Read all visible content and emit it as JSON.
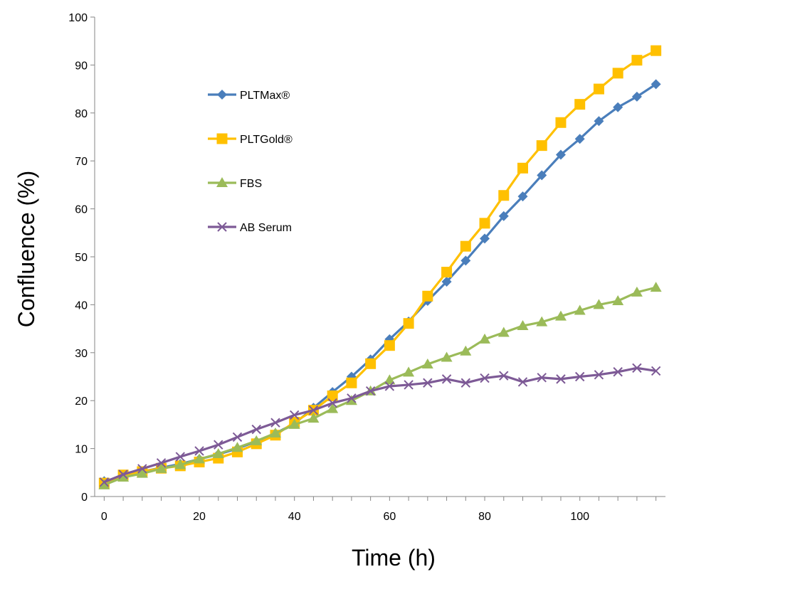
{
  "chart_data": {
    "type": "line",
    "title": "",
    "xlabel": "Time (h)",
    "ylabel": "Confluence (%)",
    "xlim": [
      -2,
      118
    ],
    "ylim": [
      0,
      100
    ],
    "x_ticks": [
      0,
      20,
      40,
      60,
      80,
      100
    ],
    "y_ticks": [
      0,
      10,
      20,
      30,
      40,
      50,
      60,
      70,
      80,
      90,
      100
    ],
    "grid": false,
    "legend_position": "upper-left-inside",
    "x": [
      0,
      4,
      8,
      12,
      16,
      20,
      24,
      28,
      32,
      36,
      40,
      44,
      48,
      52,
      56,
      60,
      64,
      68,
      72,
      76,
      80,
      84,
      88,
      92,
      96,
      100,
      104,
      108,
      112,
      116
    ],
    "series": [
      {
        "name": "PLTMax®",
        "color": "#4a7ebb",
        "marker": "diamond",
        "values": [
          3.2,
          4.2,
          5.2,
          6.0,
          6.8,
          7.8,
          8.8,
          10.0,
          11.5,
          13.2,
          15.2,
          18.5,
          21.8,
          25.0,
          28.6,
          32.8,
          36.5,
          40.8,
          44.8,
          49.2,
          53.8,
          58.5,
          62.6,
          67.0,
          71.3,
          74.6,
          78.3,
          81.2,
          83.4,
          86.0
        ]
      },
      {
        "name": "PLTGold®",
        "color": "#ffc000",
        "marker": "square",
        "values": [
          2.8,
          4.5,
          5.2,
          5.9,
          6.4,
          7.2,
          8.0,
          9.3,
          11.0,
          12.8,
          15.5,
          18.0,
          21.0,
          23.7,
          27.7,
          31.5,
          36.1,
          41.8,
          46.8,
          52.2,
          57.0,
          62.8,
          68.5,
          73.2,
          78.0,
          81.8,
          85.0,
          88.3,
          91.0,
          93.0
        ]
      },
      {
        "name": "FBS",
        "color": "#9bbb59",
        "marker": "triangle",
        "values": [
          2.4,
          4.0,
          4.8,
          5.8,
          6.6,
          7.8,
          8.9,
          10.2,
          11.6,
          13.2,
          15.0,
          16.3,
          18.3,
          20.0,
          22.0,
          24.3,
          25.9,
          27.6,
          29.0,
          30.3,
          32.8,
          34.2,
          35.6,
          36.4,
          37.6,
          38.8,
          40.0,
          40.8,
          42.6,
          43.6
        ]
      },
      {
        "name": "AB Serum",
        "color": "#7d5a96",
        "marker": "x",
        "values": [
          3.0,
          4.6,
          5.8,
          7.0,
          8.3,
          9.5,
          10.8,
          12.4,
          14.0,
          15.4,
          17.0,
          18.0,
          19.5,
          20.5,
          22.0,
          23.0,
          23.3,
          23.7,
          24.5,
          23.7,
          24.7,
          25.2,
          23.9,
          24.8,
          24.5,
          25.0,
          25.4,
          26.0,
          26.8,
          26.2
        ]
      }
    ]
  }
}
